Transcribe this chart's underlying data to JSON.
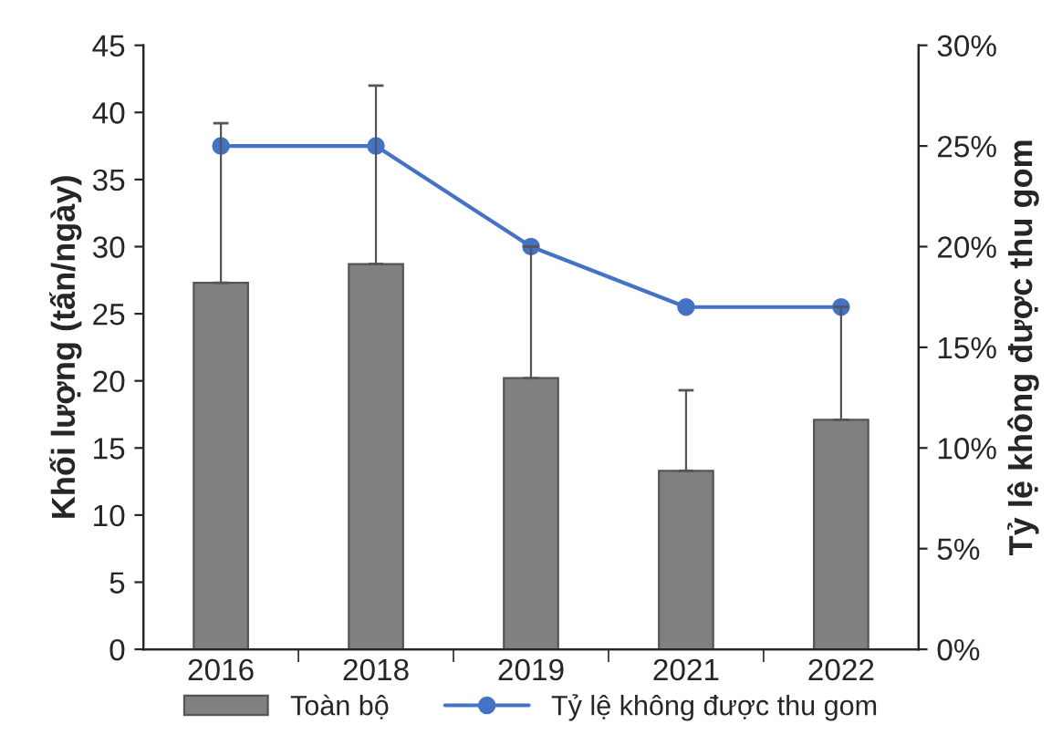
{
  "chart_data": {
    "type": "bar",
    "categories": [
      "2016",
      "2018",
      "2019",
      "2021",
      "2022"
    ],
    "ylabel": "Khối lượng (tấn/ngày)",
    "y2label": "Tỷ lệ không được thu gom",
    "ylim": [
      0,
      45
    ],
    "yticks": [
      0,
      5,
      10,
      15,
      20,
      25,
      30,
      35,
      40,
      45
    ],
    "y2lim": [
      0,
      30
    ],
    "y2ticks": [
      {
        "value": 0,
        "label": "0%"
      },
      {
        "value": 5,
        "label": "5%"
      },
      {
        "value": 10,
        "label": "10%"
      },
      {
        "value": 15,
        "label": "15%"
      },
      {
        "value": 20,
        "label": "20%"
      },
      {
        "value": 25,
        "label": "25%"
      },
      {
        "value": 30,
        "label": "30%"
      }
    ],
    "series": [
      {
        "name": "Toàn bộ",
        "color": "#808080",
        "values": [
          27.3,
          28.7,
          20.2,
          13.3,
          17.1
        ],
        "errors": [
          [
            27.3,
            39.2
          ],
          [
            28.7,
            42.0
          ],
          [
            20.2,
            30.0
          ],
          [
            13.3,
            19.3
          ],
          [
            17.1,
            25.5
          ]
        ]
      },
      {
        "name": "Tỷ lệ không được thu gom",
        "type": "line",
        "axis": "y2",
        "color": "#4472c4",
        "marker": "circle",
        "line_style": "solid",
        "values": [
          25,
          25,
          20,
          17,
          17
        ]
      }
    ],
    "grid": false,
    "legend": "bottom"
  }
}
